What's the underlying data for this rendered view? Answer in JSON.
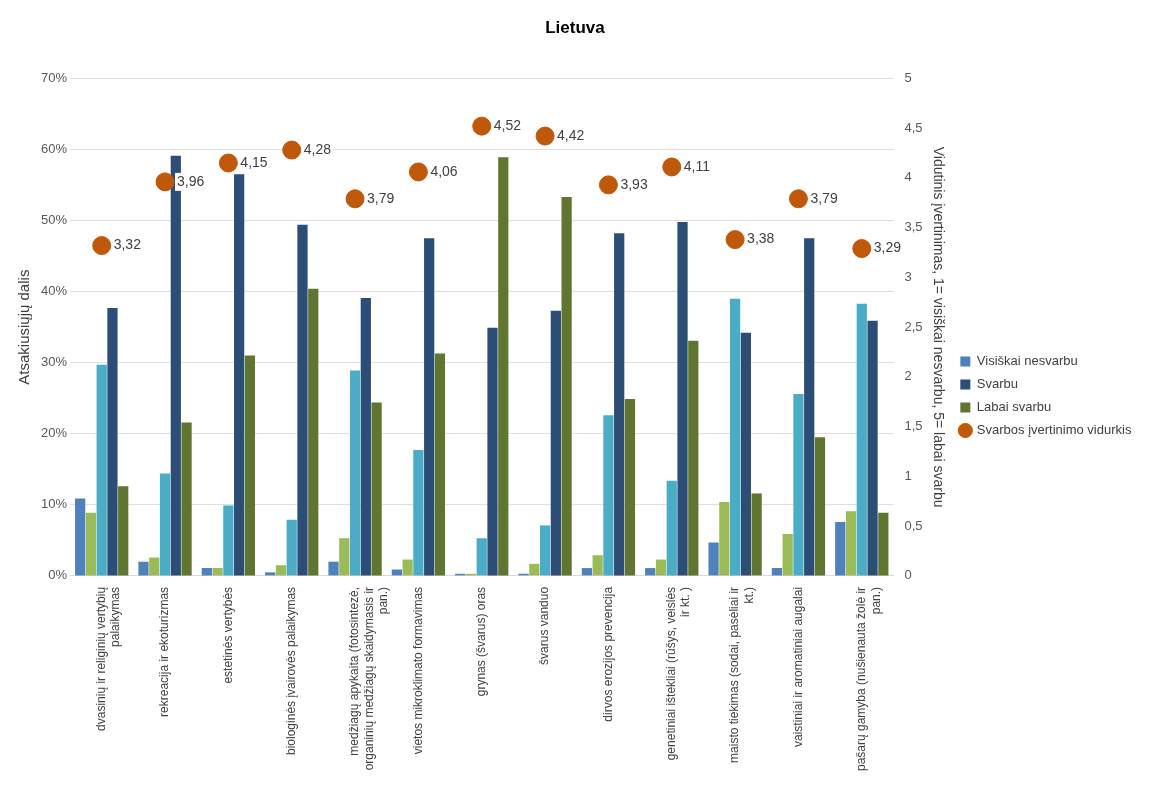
{
  "chart_data": {
    "type": "bar",
    "title": "Lietuva",
    "ylabel": "Atsakiusiųjų dalis",
    "y2label": "Vidutinis įvertinimas, 1= visiškai nesvarbu, 5= labai svarbu",
    "categories": [
      "dvasinių ir religinių vertybių palaikymas",
      "rekreacija ir ekoturizmas",
      "estetinės vertybės",
      "biologinės įvairovės palaikymas",
      "medžiagų apykaita (fotosintezė, organinių medžiagų skaidymasis ir pan.)",
      "vietos mikroklimato formavimas",
      "grynas (švarus) oras",
      "švarus vanduo",
      "dirvos erozijos prevencija",
      "genetiniai ištekliai (rūšys, veislės ir kt. )",
      "maisto tiekimas (sodai, pasėliai ir kt.)",
      "vaistiniai ir aromatiniai augalai",
      "pašarų gamyba (nušienauta žolė ir pan.)"
    ],
    "series": [
      {
        "name": "Visiškai nesvarbu",
        "color": "#4f81bd",
        "values": [
          10.9,
          2.0,
          1.1,
          0.5,
          2.0,
          0.9,
          0.3,
          0.3,
          1.1,
          1.1,
          4.7,
          1.1,
          7.6
        ]
      },
      {
        "color": "#9bbb59",
        "values": [
          8.9,
          2.6,
          1.1,
          1.5,
          5.3,
          2.3,
          0.3,
          1.7,
          2.9,
          2.3,
          10.4,
          5.9,
          9.1
        ]
      },
      {
        "color": "#4bacc6",
        "values": [
          29.7,
          14.4,
          9.9,
          7.9,
          28.9,
          17.7,
          5.3,
          7.1,
          22.6,
          13.4,
          39.0,
          25.6,
          38.3
        ]
      },
      {
        "name": "Svarbu",
        "color": "#2c4d75",
        "values": [
          37.7,
          59.1,
          56.5,
          49.4,
          39.1,
          47.5,
          34.9,
          37.3,
          48.2,
          49.8,
          34.2,
          47.5,
          35.9
        ]
      },
      {
        "name": "Labai svarbu",
        "color": "#5f7530",
        "values": [
          12.6,
          21.6,
          31.0,
          40.4,
          24.4,
          31.3,
          58.9,
          53.3,
          24.9,
          33.1,
          11.6,
          19.5,
          8.9
        ]
      },
      {
        "name": "Svarbos įvertinimo vidurkis",
        "type": "scatter",
        "axis": "y2",
        "color": "#c0580a",
        "values": [
          3.32,
          3.96,
          4.15,
          4.28,
          3.79,
          4.06,
          4.52,
          4.42,
          3.93,
          4.11,
          3.38,
          3.79,
          3.29
        ],
        "value_labels": [
          "3,32",
          "3,96",
          "4,15",
          "4,28",
          "3,79",
          "4,06",
          "4,52",
          "4,42",
          "3,93",
          "4,11",
          "3,38",
          "3,79",
          "3,29"
        ]
      }
    ],
    "ylim": [
      0,
      70
    ],
    "yticks": [
      {
        "value": 0,
        "label": "0%"
      },
      {
        "value": 10,
        "label": "10%"
      },
      {
        "value": 20,
        "label": "20%"
      },
      {
        "value": 30,
        "label": "30%"
      },
      {
        "value": 40,
        "label": "40%"
      },
      {
        "value": 50,
        "label": "50%"
      },
      {
        "value": 60,
        "label": "60%"
      },
      {
        "value": 70,
        "label": "70%"
      }
    ],
    "y2lim": [
      0,
      5
    ],
    "y2ticks": [
      0,
      {
        "value": 0.5,
        "label": "0,5"
      },
      1,
      {
        "value": 1.5,
        "label": "1,5"
      },
      2,
      {
        "value": 2.5,
        "label": "2,5"
      },
      3,
      {
        "value": 3.5,
        "label": "3,5"
      },
      4,
      {
        "value": 4.5,
        "label": "4,5"
      },
      5
    ],
    "grid": "y",
    "legend": "right",
    "marker": "circle"
  }
}
